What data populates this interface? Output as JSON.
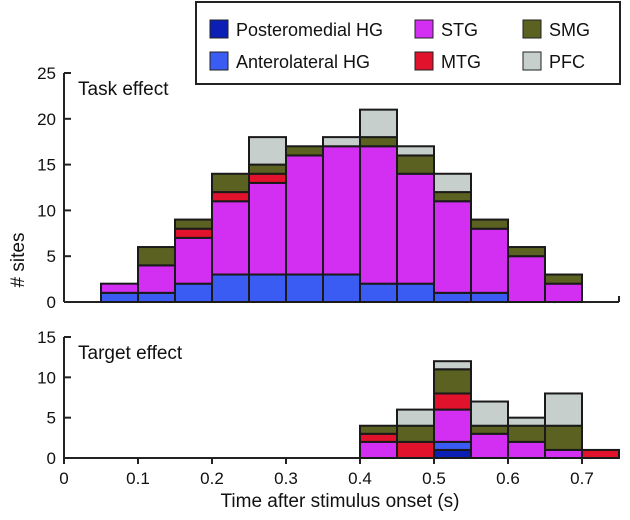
{
  "chart_data": [
    {
      "type": "bar",
      "stacked": true,
      "title": "Task effect",
      "xlabel": "Time after stimulus onset (s)",
      "ylabel": "# sites",
      "ylim": [
        0,
        25
      ],
      "yticks": [
        "0",
        "5",
        "10",
        "15",
        "20",
        "25"
      ],
      "bin_width": 0.05,
      "x": [
        0.05,
        0.1,
        0.15,
        0.2,
        0.25,
        0.3,
        0.35,
        0.4,
        0.45,
        0.5,
        0.55,
        0.6,
        0.65
      ],
      "series": [
        {
          "name": "Posteromedial HG",
          "color": "#0b1fb5",
          "values": [
            0,
            0,
            0,
            0,
            0,
            0,
            0,
            0,
            0,
            0,
            0,
            0,
            0
          ]
        },
        {
          "name": "Anterolateral HG",
          "color": "#3a5cf2",
          "values": [
            1,
            1,
            2,
            3,
            3,
            3,
            3,
            2,
            2,
            1,
            1,
            0,
            0
          ]
        },
        {
          "name": "STG",
          "color": "#d22ff2",
          "values": [
            1,
            3,
            5,
            8,
            10,
            13,
            14,
            15,
            12,
            10,
            7,
            5,
            2
          ]
        },
        {
          "name": "MTG",
          "color": "#e0122c",
          "values": [
            0,
            0,
            1,
            1,
            1,
            0,
            0,
            0,
            0,
            0,
            0,
            0,
            0
          ]
        },
        {
          "name": "SMG",
          "color": "#5b6120",
          "values": [
            0,
            2,
            1,
            2,
            1,
            1,
            0,
            1,
            2,
            1,
            1,
            1,
            1
          ]
        },
        {
          "name": "PFC",
          "color": "#c7cfcc",
          "values": [
            0,
            0,
            0,
            0,
            3,
            0,
            1,
            3,
            1,
            2,
            0,
            0,
            0
          ]
        }
      ]
    },
    {
      "type": "bar",
      "stacked": true,
      "title": "Target effect",
      "xlabel": "Time after stimulus onset (s)",
      "ylabel": "# sites",
      "ylim": [
        0,
        15
      ],
      "yticks": [
        "0",
        "5",
        "10",
        "15"
      ],
      "xlim": [
        0,
        0.75
      ],
      "xticks": [
        "0",
        "0.1",
        "0.2",
        "0.3",
        "0.4",
        "0.5",
        "0.6",
        "0.7"
      ],
      "bin_width": 0.05,
      "x": [
        0.4,
        0.45,
        0.5,
        0.55,
        0.6,
        0.65,
        0.7
      ],
      "series": [
        {
          "name": "Posteromedial HG",
          "color": "#0b1fb5",
          "values": [
            0,
            0,
            1,
            0,
            0,
            0,
            0
          ]
        },
        {
          "name": "Anterolateral HG",
          "color": "#3a5cf2",
          "values": [
            0,
            0,
            1,
            0,
            0,
            0,
            0
          ]
        },
        {
          "name": "STG",
          "color": "#d22ff2",
          "values": [
            2,
            0,
            4,
            3,
            2,
            1,
            0
          ]
        },
        {
          "name": "MTG",
          "color": "#e0122c",
          "values": [
            1,
            2,
            2,
            0,
            0,
            0,
            1
          ]
        },
        {
          "name": "SMG",
          "color": "#5b6120",
          "values": [
            1,
            2,
            3,
            1,
            2,
            3,
            0
          ]
        },
        {
          "name": "PFC",
          "color": "#c7cfcc",
          "values": [
            0,
            2,
            1,
            3,
            1,
            4,
            0
          ]
        }
      ]
    }
  ],
  "legend": [
    "Posteromedial HG",
    "STG",
    "SMG",
    "Anterolateral HG",
    "MTG",
    "PFC"
  ]
}
